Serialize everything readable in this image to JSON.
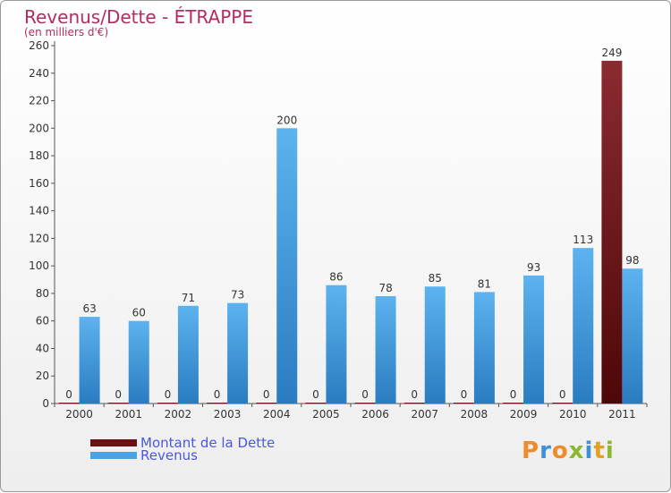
{
  "chart_data": {
    "type": "bar",
    "title": "Revenus/Dette - ÉTRAPPE",
    "subtitle": "(en milliers d'€)",
    "categories": [
      "2000",
      "2001",
      "2002",
      "2003",
      "2004",
      "2005",
      "2006",
      "2007",
      "2008",
      "2009",
      "2010",
      "2011"
    ],
    "series": [
      {
        "name": "Montant de la Dette",
        "color": "#6b0f12",
        "values": [
          0,
          0,
          0,
          0,
          0,
          0,
          0,
          0,
          0,
          0,
          0,
          249
        ]
      },
      {
        "name": "Revenus",
        "color": "#4ba3e3",
        "values": [
          63,
          60,
          71,
          73,
          200,
          86,
          78,
          85,
          81,
          93,
          113,
          98
        ]
      }
    ],
    "ylim": [
      0,
      260
    ],
    "yticks": [
      0,
      20,
      40,
      60,
      80,
      100,
      120,
      140,
      160,
      180,
      200,
      220,
      240,
      260
    ],
    "grid": false,
    "legend_position": "bottom-left"
  },
  "logo": {
    "text": "Proxiti",
    "letters": [
      "P",
      "r",
      "o",
      "x",
      "i",
      "t",
      "i"
    ]
  }
}
